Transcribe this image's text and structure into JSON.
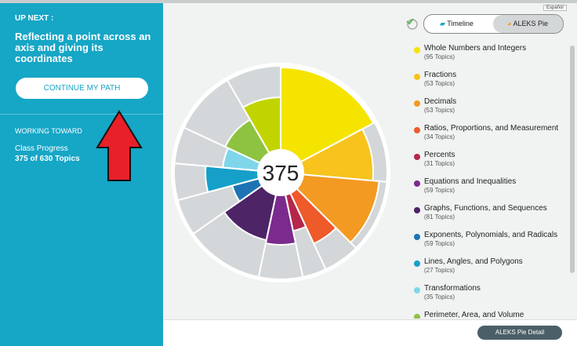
{
  "header": {
    "up_next": "UP NEXT :",
    "lesson": [
      "Reflecting a point across an",
      "axis and giving its",
      "coordinates"
    ],
    "button": "CONTINUE MY PATH",
    "working_toward": "WORKING TOWARD",
    "class_progress": "Class Progress",
    "progress": "375 of 630 Topics"
  },
  "language": "Español",
  "toggle": {
    "timeline": "Timeline",
    "pie": "ALEKS Pie"
  },
  "pie": {
    "center": "375"
  },
  "legend": [
    {
      "name": "Whole Numbers and Integers",
      "topics": "(95 Topics)",
      "color": "#f5e400"
    },
    {
      "name": "Fractions",
      "topics": "(53 Topics)",
      "color": "#f7c31c"
    },
    {
      "name": "Decimals",
      "topics": "(53 Topics)",
      "color": "#f39a22"
    },
    {
      "name": "Ratios, Proportions, and Measurement",
      "topics": "(34 Topics)",
      "color": "#ee5a2a"
    },
    {
      "name": "Percents",
      "topics": "(31 Topics)",
      "color": "#b5274b"
    },
    {
      "name": "Equations and Inequalities",
      "topics": "(59 Topics)",
      "color": "#7b2a8e"
    },
    {
      "name": "Graphs, Functions, and Sequences",
      "topics": "(81 Topics)",
      "color": "#4d2466"
    },
    {
      "name": "Exponents, Polynomials, and Radicals",
      "topics": "(59 Topics)",
      "color": "#1d73b4"
    },
    {
      "name": "Lines, Angles, and Polygons",
      "topics": "(27 Topics)",
      "color": "#16a0c9"
    },
    {
      "name": "Transformations",
      "topics": "(35 Topics)",
      "color": "#7fd6ea"
    },
    {
      "name": "Perimeter, Area, and Volume",
      "color": "#8dc341"
    }
  ],
  "footer_button": "ALEKS Pie Detail"
}
